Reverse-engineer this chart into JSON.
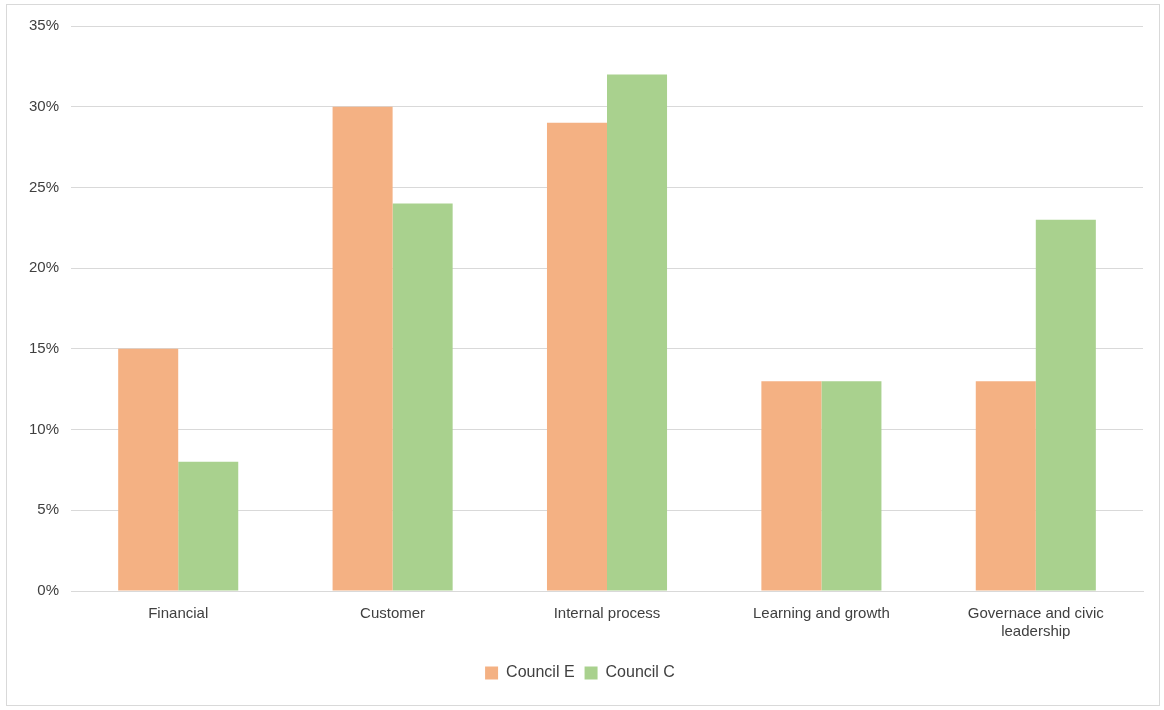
{
  "chart_data": {
    "type": "bar",
    "categories": [
      "Financial",
      "Customer",
      "Internal process",
      "Learning and growth",
      "Governace and civic leadership"
    ],
    "series": [
      {
        "name": "Council E",
        "color": "#f4b183",
        "values": [
          15,
          30,
          29,
          13,
          13
        ]
      },
      {
        "name": "Council C",
        "color": "#a9d18e",
        "values": [
          8,
          24,
          32,
          13,
          23
        ]
      }
    ],
    "ylim": [
      0,
      35
    ],
    "yticks": [
      {
        "value": 0,
        "label": "0%"
      },
      {
        "value": 5,
        "label": "5%"
      },
      {
        "value": 10,
        "label": "10%"
      },
      {
        "value": 15,
        "label": "15%"
      },
      {
        "value": 20,
        "label": "20%"
      },
      {
        "value": 25,
        "label": "25%"
      },
      {
        "value": 30,
        "label": "30%"
      },
      {
        "value": 35,
        "label": "35%"
      }
    ],
    "grid": "y",
    "legend": "bottom"
  }
}
